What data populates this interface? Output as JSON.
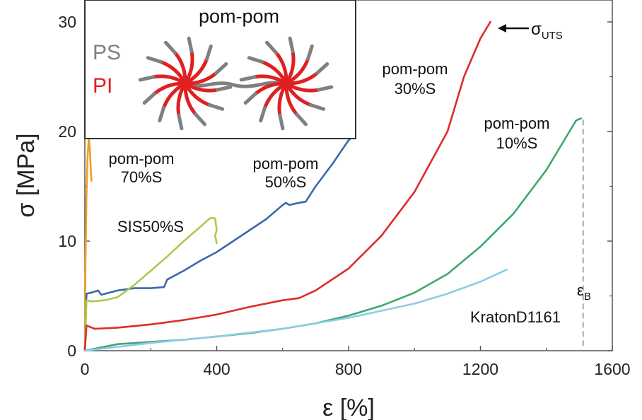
{
  "chart_data": {
    "type": "line",
    "xlabel": "ε [%]",
    "ylabel": "σ [MPa]",
    "xlim": [
      0,
      1600
    ],
    "ylim": [
      0,
      32
    ],
    "x_ticks": [
      "0",
      "400",
      "800",
      "1200",
      "1600"
    ],
    "y_ticks": [
      "0",
      "10",
      "20",
      "30"
    ],
    "grid": false,
    "series": [
      {
        "name": "pom-pom 70%S",
        "color": "#f0a020",
        "x": [
          0,
          2,
          5,
          8,
          12,
          15,
          18,
          20
        ],
        "y": [
          0,
          8,
          14,
          17.5,
          19.5,
          18.5,
          16.5,
          15.5
        ]
      },
      {
        "name": "pom-pom 50%S",
        "color": "#3a6aaa",
        "x": [
          0,
          5,
          20,
          40,
          50,
          100,
          150,
          200,
          240,
          250,
          300,
          350,
          400,
          450,
          500,
          550,
          600,
          610,
          620,
          650,
          670,
          700,
          750,
          800,
          810
        ],
        "y": [
          0,
          5.2,
          5.3,
          5.5,
          5.1,
          5.5,
          5.7,
          5.7,
          5.8,
          6.5,
          7.3,
          8.2,
          9.0,
          10.0,
          11.0,
          12.0,
          13.3,
          13.5,
          13.3,
          13.5,
          13.6,
          15.0,
          17.0,
          19.2,
          19.5
        ]
      },
      {
        "name": "SIS50%S",
        "color": "#a6cc50",
        "x": [
          0,
          5,
          20,
          60,
          100,
          150,
          200,
          250,
          300,
          350,
          380,
          395,
          400,
          395,
          400
        ],
        "y": [
          0,
          4.6,
          4.5,
          4.6,
          4.9,
          6.0,
          7.3,
          8.6,
          10.0,
          11.3,
          12.1,
          12.1,
          11.0,
          10.5,
          9.8
        ]
      },
      {
        "name": "pom-pom 30%S",
        "color": "#e02a2a",
        "x": [
          0,
          5,
          30,
          100,
          200,
          300,
          400,
          500,
          600,
          650,
          700,
          800,
          900,
          1000,
          1100,
          1150,
          1200,
          1230
        ],
        "y": [
          0,
          2.3,
          2.0,
          2.1,
          2.4,
          2.8,
          3.3,
          4.0,
          4.6,
          4.8,
          5.5,
          7.5,
          10.5,
          14.5,
          20.0,
          25.0,
          28.5,
          30.0
        ]
      },
      {
        "name": "pom-pom 10%S",
        "color": "#3fa86a",
        "x": [
          0,
          100,
          200,
          300,
          400,
          500,
          600,
          700,
          800,
          900,
          1000,
          1100,
          1200,
          1300,
          1400,
          1450,
          1490,
          1505
        ],
        "y": [
          0,
          0.6,
          0.8,
          1.0,
          1.3,
          1.6,
          2.0,
          2.5,
          3.2,
          4.1,
          5.3,
          7.0,
          9.5,
          12.5,
          16.5,
          19.0,
          21.0,
          21.2
        ]
      },
      {
        "name": "KratonD1161",
        "color": "#8fcbe6",
        "x": [
          0,
          200,
          400,
          600,
          800,
          1000,
          1100,
          1200,
          1280
        ],
        "y": [
          0,
          0.7,
          1.3,
          2.0,
          3.0,
          4.3,
          5.2,
          6.3,
          7.4
        ]
      }
    ],
    "annotations": [
      {
        "text_main": "σ",
        "text_sub": "UTS"
      },
      {
        "text_main": "ε",
        "text_sub": "B"
      }
    ]
  },
  "labels": {
    "p70_line1": "pom-pom",
    "p70_line2": "70%S",
    "p50_line1": "pom-pom",
    "p50_line2": "50%S",
    "sis": "SIS50%S",
    "p30_line1": "pom-pom",
    "p30_line2": "30%S",
    "p10_line1": "pom-pom",
    "p10_line2": "10%S",
    "kraton": "KratonD1161"
  },
  "inset": {
    "title": "pom-pom",
    "ps_label": "PS",
    "pi_label": "PI",
    "ps_color": "#808080",
    "pi_color": "#e02020"
  }
}
